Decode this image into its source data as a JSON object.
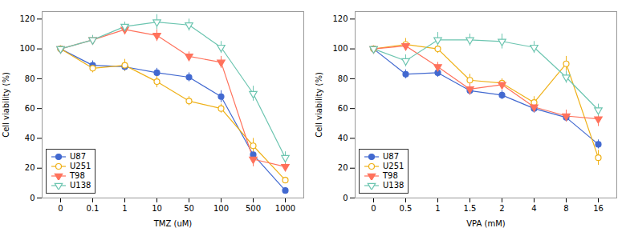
{
  "chart_data": [
    {
      "type": "line",
      "xlabel": "TMZ (uM)",
      "ylabel": "Cell viability (%)",
      "categories": [
        "0",
        "0.1",
        "1",
        "10",
        "50",
        "100",
        "500",
        "1000"
      ],
      "ylim": [
        0,
        125
      ],
      "yticks": [
        0,
        20,
        40,
        60,
        80,
        100,
        120
      ],
      "legend": "lower left",
      "series": [
        {
          "name": "U87",
          "marker": "circle",
          "values": [
            100,
            89,
            88,
            84,
            81,
            68,
            29,
            5
          ],
          "errors": [
            2,
            3,
            3,
            3,
            3,
            4,
            4,
            2
          ]
        },
        {
          "name": "U251",
          "marker": "circle-open",
          "values": [
            100,
            87,
            89,
            78,
            65,
            60,
            35,
            12
          ],
          "errors": [
            2,
            3,
            4,
            4,
            3,
            3,
            5,
            2
          ]
        },
        {
          "name": "T98",
          "marker": "triangle-down",
          "values": [
            100,
            106,
            113,
            109,
            95,
            91,
            26,
            21
          ],
          "errors": [
            2,
            3,
            3,
            4,
            3,
            4,
            5,
            3
          ]
        },
        {
          "name": "U138",
          "marker": "triangle-down-open",
          "values": [
            100,
            106,
            115,
            118,
            116,
            101,
            70,
            27
          ],
          "errors": [
            2,
            3,
            3,
            5,
            4,
            4,
            5,
            4
          ]
        }
      ]
    },
    {
      "type": "line",
      "xlabel": "VPA (mM)",
      "ylabel": "Cell viability (%)",
      "categories": [
        "0",
        "0.5",
        "1",
        "1.5",
        "2",
        "4",
        "8",
        "16"
      ],
      "ylim": [
        0,
        125
      ],
      "yticks": [
        0,
        20,
        40,
        60,
        80,
        100,
        120
      ],
      "legend": "lower left",
      "series": [
        {
          "name": "U87",
          "marker": "circle",
          "values": [
            100,
            83,
            84,
            72,
            69,
            60,
            54,
            36
          ],
          "errors": [
            2,
            3,
            3,
            3,
            3,
            3,
            3,
            3
          ]
        },
        {
          "name": "U251",
          "marker": "circle-open",
          "values": [
            100,
            103,
            100,
            79,
            77,
            64,
            90,
            27
          ],
          "errors": [
            2,
            4,
            3,
            4,
            3,
            4,
            5,
            5
          ]
        },
        {
          "name": "T98",
          "marker": "triangle-down",
          "values": [
            100,
            102,
            88,
            73,
            76,
            61,
            55,
            53
          ],
          "errors": [
            2,
            3,
            3,
            4,
            3,
            3,
            4,
            5
          ]
        },
        {
          "name": "U138",
          "marker": "triangle-down-open",
          "values": [
            100,
            92,
            106,
            106,
            105,
            101,
            81,
            59
          ],
          "errors": [
            2,
            4,
            5,
            4,
            5,
            4,
            4,
            4
          ]
        }
      ]
    }
  ]
}
